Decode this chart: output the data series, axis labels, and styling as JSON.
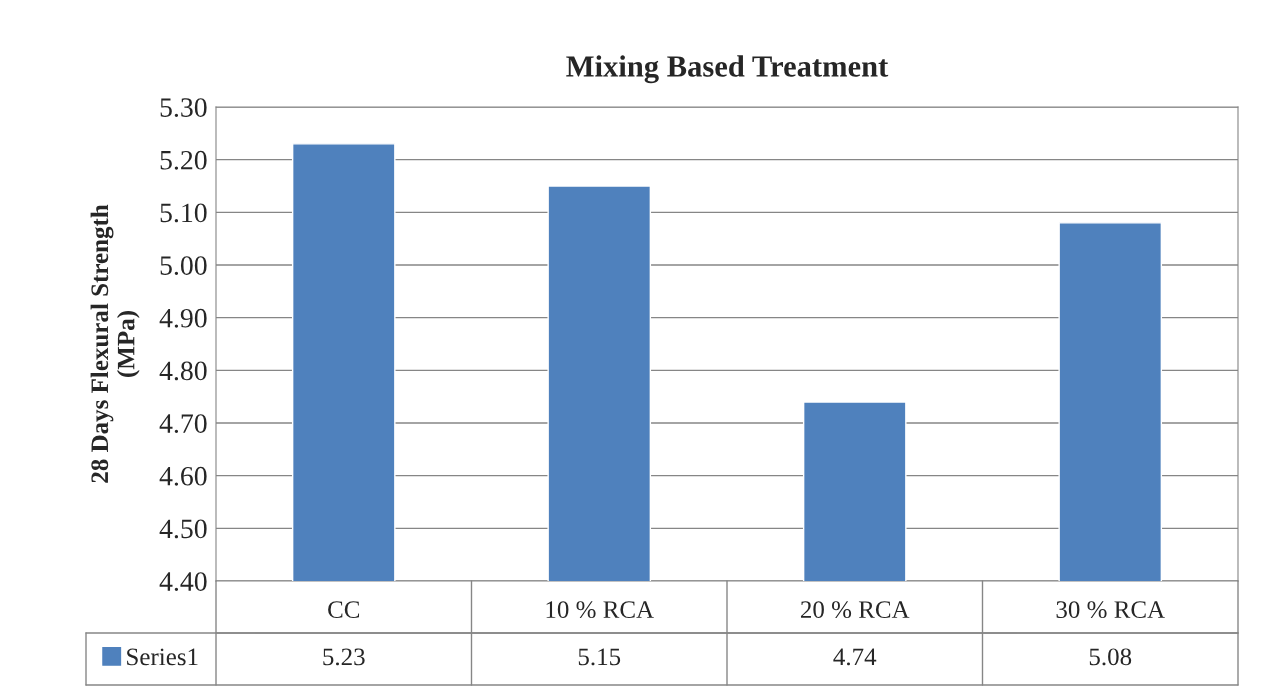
{
  "chart_data": {
    "type": "bar",
    "title": "Mixing Based Treatment",
    "ylabel": "28 Days Flexural Strength\n(MPa)",
    "categories": [
      "CC",
      "10 % RCA",
      "20 % RCA",
      "30 % RCA"
    ],
    "series": [
      {
        "name": "Series1",
        "color": "#4f81bd",
        "values": [
          5.23,
          5.15,
          4.74,
          5.08
        ]
      }
    ],
    "ylim": [
      4.4,
      5.3
    ],
    "yticks": [
      {
        "value": 4.4,
        "label": "4.40"
      },
      {
        "value": 4.5,
        "label": "4.50"
      },
      {
        "value": 4.6,
        "label": "4.60"
      },
      {
        "value": 4.7,
        "label": "4.70"
      },
      {
        "value": 4.8,
        "label": "4.80"
      },
      {
        "value": 4.9,
        "label": "4.90"
      },
      {
        "value": 5.0,
        "label": "5.00"
      },
      {
        "value": 5.1,
        "label": "5.10"
      },
      {
        "value": 5.2,
        "label": "5.20"
      },
      {
        "value": 5.3,
        "label": "5.30"
      }
    ],
    "grid": "y",
    "legend": "bottom",
    "data_labels": true
  }
}
